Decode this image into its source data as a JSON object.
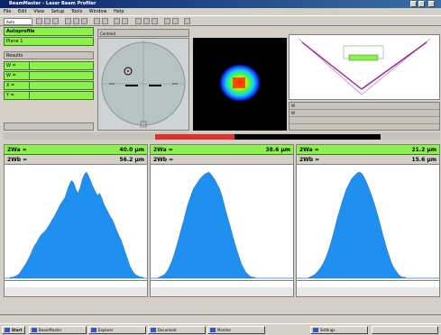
{
  "window": {
    "title": "BeamMaster - Laser Beam Profiler"
  },
  "menubar": [
    "File",
    "Edit",
    "View",
    "Setup",
    "Tools",
    "Window",
    "Help"
  ],
  "toolbar": {
    "combo_label": "Auto"
  },
  "left_panel": {
    "header": "Autoprofile",
    "sub": "Plane 1",
    "section_label": "Results",
    "rows": [
      {
        "k": "W =",
        "v": ""
      },
      {
        "k": "W =",
        "v": ""
      },
      {
        "k": "X =",
        "v": ""
      },
      {
        "k": "Y =",
        "v": ""
      }
    ],
    "bottom": ""
  },
  "crosshair": {
    "label": "Centroid"
  },
  "plot": {
    "caption": ""
  },
  "info": {
    "rows": [
      [
        "W",
        "",
        "",
        ""
      ],
      [
        "W",
        "",
        "",
        ""
      ],
      [
        "",
        "",
        "",
        ""
      ]
    ]
  },
  "midbar": {
    "label": "",
    "progress": 0.35,
    "right_label": ""
  },
  "profiles": [
    {
      "green_label": "2Wa =",
      "green_value": "40.0 µm",
      "gray_label": "2Wb =",
      "gray_value": "56.2 µm",
      "foot_left": "",
      "foot_right": "",
      "foot_formula": ""
    },
    {
      "green_label": "2Wa =",
      "green_value": "38.6 µm",
      "gray_label": "2Wb =",
      "gray_value": "",
      "foot_left": "",
      "foot_right": "",
      "foot_formula": ""
    },
    {
      "green_label": "2Wa =",
      "green_value": "21.2 µm",
      "gray_label": "2Wb =",
      "gray_value": "15.6 µm",
      "foot_left": "",
      "foot_right": "",
      "foot_formula": ""
    }
  ],
  "chart_data": [
    {
      "type": "area",
      "values": [
        0,
        0,
        0,
        1,
        1,
        2,
        3,
        5,
        8,
        11,
        14,
        18,
        22,
        27,
        31,
        34,
        38,
        41,
        43,
        45,
        48,
        51,
        55,
        58,
        62,
        66,
        70,
        73,
        76,
        82,
        88,
        92,
        90,
        84,
        80,
        85,
        93,
        98,
        100,
        96,
        91,
        86,
        82,
        78,
        80,
        76,
        70,
        66,
        62,
        58,
        55,
        50,
        45,
        40,
        36,
        30,
        24,
        18,
        12,
        8,
        5,
        3,
        2,
        1,
        1,
        0,
        0
      ]
    },
    {
      "type": "area",
      "values": [
        0,
        0,
        0,
        0,
        1,
        2,
        3,
        5,
        8,
        12,
        17,
        23,
        30,
        37,
        45,
        52,
        60,
        68,
        74,
        80,
        85,
        88,
        91,
        94,
        96,
        98,
        99,
        100,
        98,
        95,
        92,
        88,
        84,
        78,
        70,
        62,
        55,
        48,
        40,
        33,
        26,
        20,
        14,
        10,
        6,
        4,
        2,
        1,
        1,
        0,
        0,
        0,
        0,
        0,
        0,
        0,
        0,
        0,
        0,
        0,
        0,
        0,
        0,
        0,
        0,
        0,
        0
      ]
    },
    {
      "type": "area",
      "values": [
        0,
        0,
        0,
        0,
        0,
        0,
        1,
        2,
        3,
        5,
        7,
        10,
        13,
        17,
        22,
        28,
        35,
        42,
        50,
        58,
        65,
        72,
        78,
        84,
        88,
        92,
        95,
        97,
        99,
        100,
        99,
        96,
        92,
        87,
        82,
        76,
        70,
        63,
        56,
        48,
        40,
        33,
        26,
        20,
        14,
        10,
        7,
        4,
        2,
        1,
        1,
        0,
        0,
        0,
        0,
        0,
        0,
        0,
        0,
        0,
        0,
        0,
        0,
        0,
        0,
        0,
        0
      ]
    }
  ],
  "statusbar": {
    "text": ""
  },
  "taskbar": {
    "items": [
      "Start",
      "BeamMaster",
      "Explorer",
      "Document",
      "Monitor",
      "Settings"
    ]
  }
}
